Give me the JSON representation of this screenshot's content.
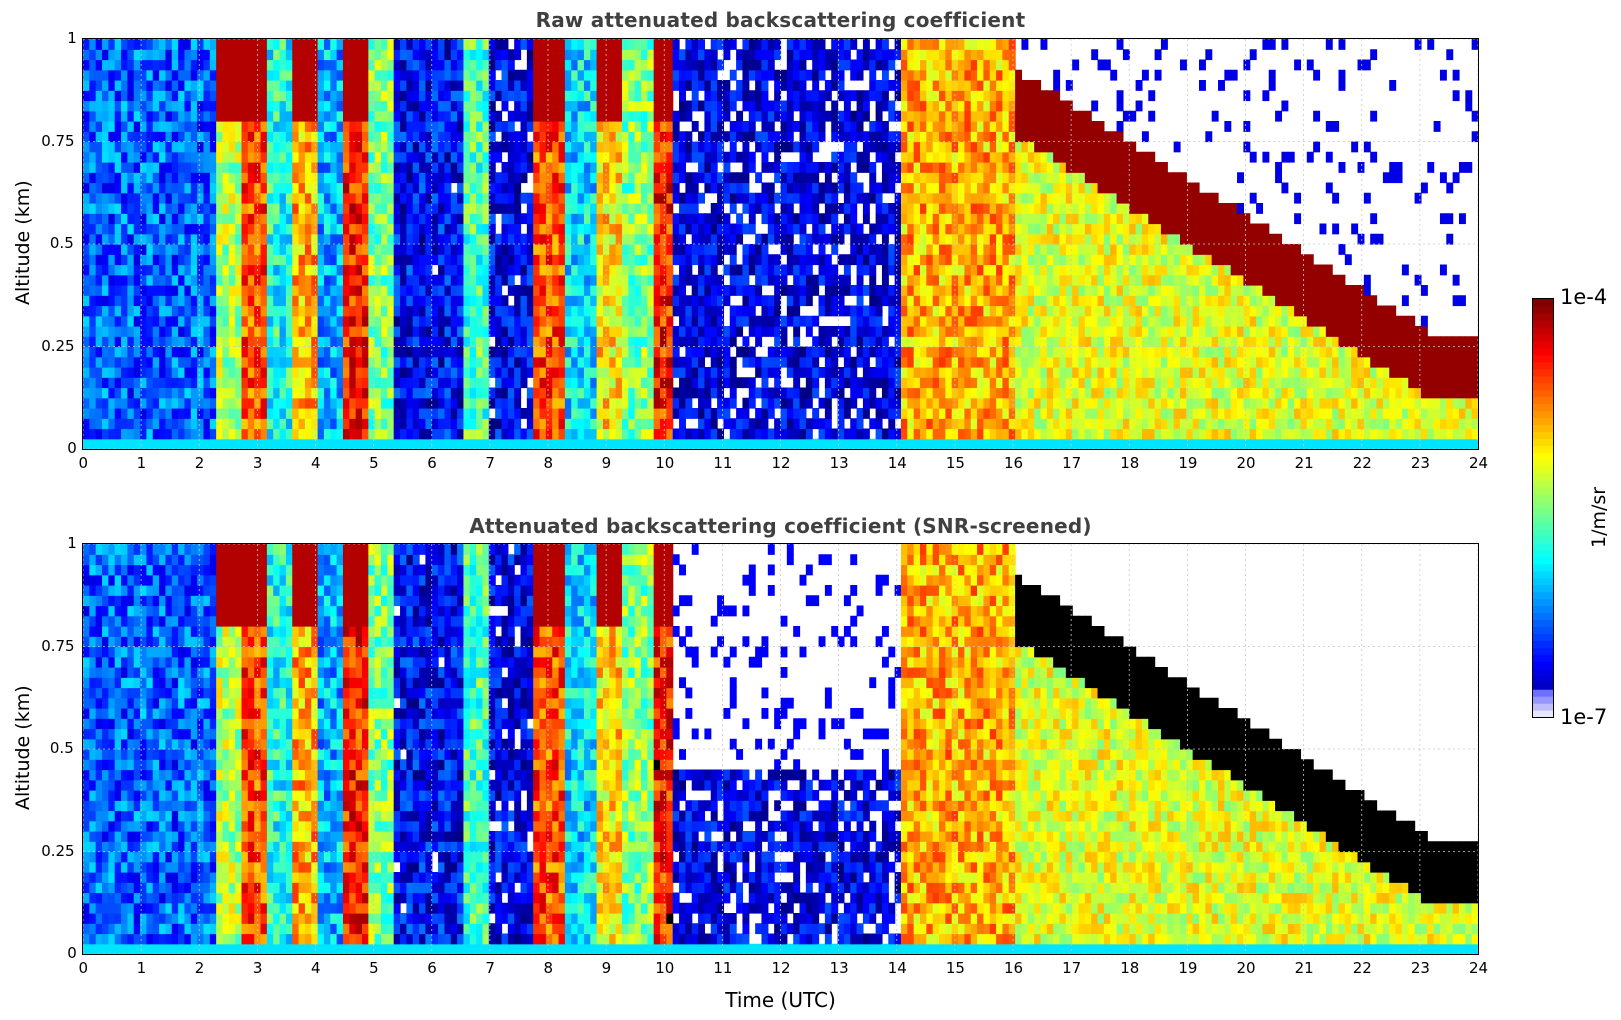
{
  "chart_data": [
    {
      "type": "heatmap",
      "title": "Raw attenuated backscattering coefficient",
      "xlabel": "",
      "ylabel": "Altitude (km)",
      "xlim": [
        0,
        24
      ],
      "ylim": [
        0,
        1
      ],
      "x_ticks": [
        "0",
        "1",
        "2",
        "3",
        "4",
        "5",
        "6",
        "7",
        "8",
        "9",
        "10",
        "11",
        "12",
        "13",
        "14",
        "15",
        "16",
        "17",
        "18",
        "19",
        "20",
        "21",
        "22",
        "23",
        "24"
      ],
      "y_ticks": [
        "0",
        "0.25",
        "0.5",
        "0.75",
        "1"
      ],
      "grid": true,
      "colormap": "jet",
      "color_scale": "log",
      "color_range": [
        1e-07,
        0.0001
      ]
    },
    {
      "type": "heatmap",
      "title": "Attenuated backscattering coefficient (SNR-screened)",
      "xlabel": "Time (UTC)",
      "ylabel": "Altitude (km)",
      "xlim": [
        0,
        24
      ],
      "ylim": [
        0,
        1
      ],
      "x_ticks": [
        "0",
        "1",
        "2",
        "3",
        "4",
        "5",
        "6",
        "7",
        "8",
        "9",
        "10",
        "11",
        "12",
        "13",
        "14",
        "15",
        "16",
        "17",
        "18",
        "19",
        "20",
        "21",
        "22",
        "23",
        "24"
      ],
      "y_ticks": [
        "0",
        "0.25",
        "0.5",
        "0.75",
        "1"
      ],
      "grid": true,
      "colormap": "jet",
      "color_scale": "log",
      "color_range": [
        1e-07,
        0.0001
      ]
    }
  ],
  "colorbar": {
    "max_label": "1e-4",
    "min_label": "1e-7",
    "units": "1/m/sr"
  }
}
